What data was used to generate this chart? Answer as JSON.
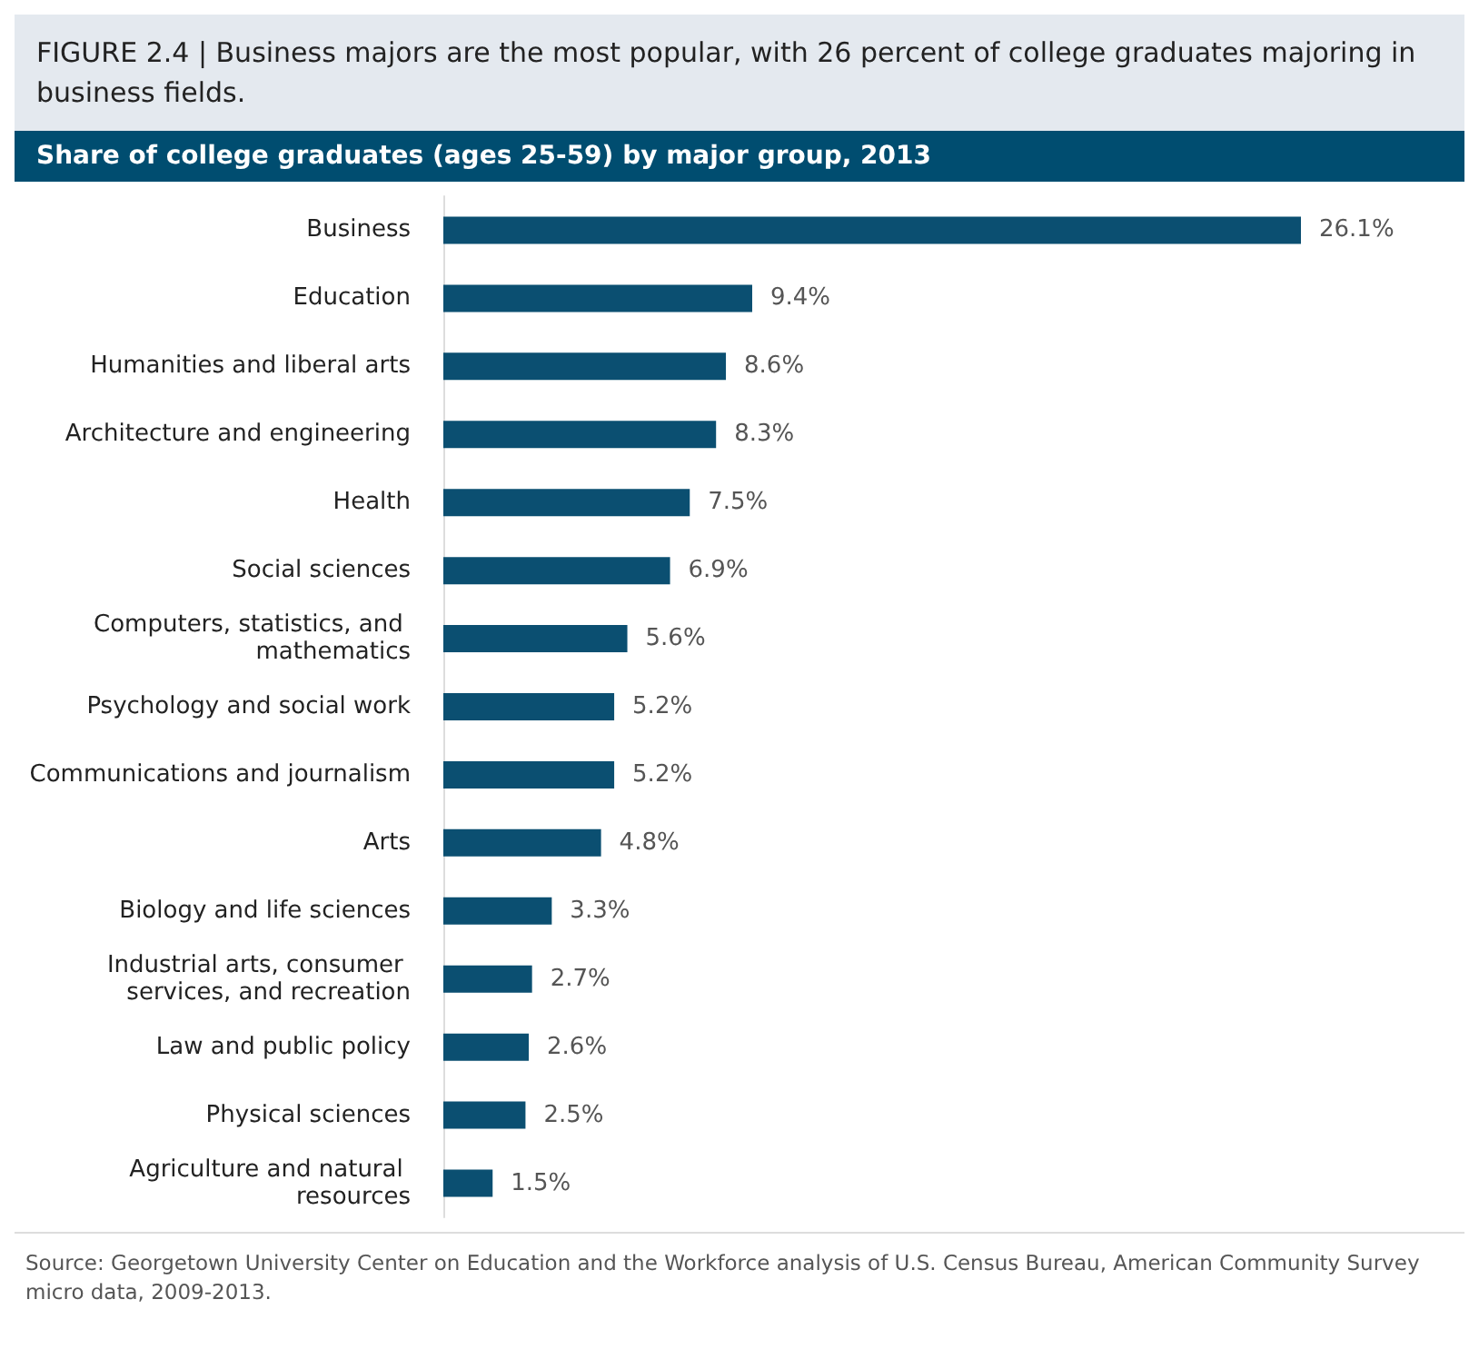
{
  "chart_data": {
    "type": "bar",
    "orientation": "horizontal",
    "title": "FIGURE 2.4  |  Business majors are the most popular, with 26 percent of college graduates majoring in business fields.",
    "subtitle": "Share of college graduates (ages 25-59) by major group, 2013",
    "categories": [
      "Business",
      "Education",
      "Humanities and liberal arts",
      "Architecture and engineering",
      "Health",
      "Social sciences",
      "Computers, statistics, and mathematics",
      "Psychology and social work",
      "Communications and journalism",
      "Arts",
      "Biology and life sciences",
      "Industrial arts, consumer services, and recreation",
      "Law and public policy",
      "Physical sciences",
      "Agriculture and natural resources"
    ],
    "values": [
      26.1,
      9.4,
      8.6,
      8.3,
      7.5,
      6.9,
      5.6,
      5.2,
      5.2,
      4.8,
      3.3,
      2.7,
      2.6,
      2.5,
      1.5
    ],
    "value_labels": [
      "26.1%",
      "9.4%",
      "8.6%",
      "8.3%",
      "7.5%",
      "6.9%",
      "5.6%",
      "5.2%",
      "5.2%",
      "4.8%",
      "3.3%",
      "2.7%",
      "2.6%",
      "2.5%",
      "1.5%"
    ],
    "color": "#0b4f71",
    "annotations": [
      "Source: Georgetown University Center on Education and the Workforce analysis of U.S. Census Bureau, American Community Survey micro data, 2009-2013."
    ]
  }
}
